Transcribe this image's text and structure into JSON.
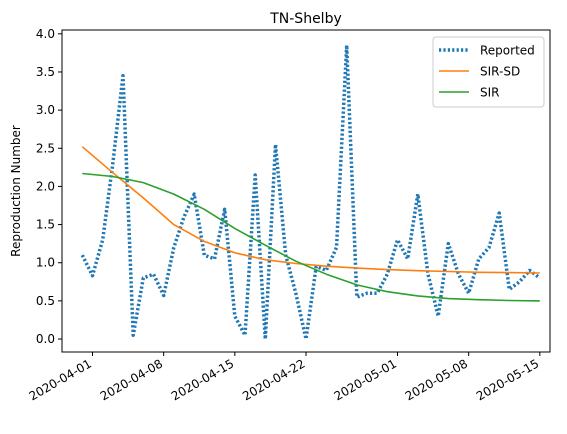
{
  "chart_data": {
    "type": "line",
    "title": "TN-Shelby",
    "xlabel": "",
    "ylabel": "Reproduction Number",
    "xlim": [
      "2020-03-29",
      "2020-05-16"
    ],
    "ylim": [
      -0.17,
      4.05
    ],
    "x_ticks": [
      "2020-04-01",
      "2020-04-08",
      "2020-04-15",
      "2020-04-22",
      "2020-05-01",
      "2020-05-08",
      "2020-05-15"
    ],
    "y_ticks": [
      "0.0",
      "0.5",
      "1.0",
      "1.5",
      "2.0",
      "2.5",
      "3.0",
      "3.5",
      "4.0"
    ],
    "grid": false,
    "legend_position": "upper right",
    "series": [
      {
        "name": "Reported",
        "style": "dotted",
        "color": "#1f77b4",
        "points": [
          [
            "2020-03-31",
            1.1
          ],
          [
            "2020-04-01",
            0.83
          ],
          [
            "2020-04-02",
            1.3
          ],
          [
            "2020-04-03",
            2.3
          ],
          [
            "2020-04-04",
            3.45
          ],
          [
            "2020-04-05",
            0.05
          ],
          [
            "2020-04-06",
            0.8
          ],
          [
            "2020-04-07",
            0.85
          ],
          [
            "2020-04-08",
            0.57
          ],
          [
            "2020-04-09",
            1.2
          ],
          [
            "2020-04-10",
            1.6
          ],
          [
            "2020-04-11",
            1.9
          ],
          [
            "2020-04-12",
            1.1
          ],
          [
            "2020-04-13",
            1.05
          ],
          [
            "2020-04-14",
            1.7
          ],
          [
            "2020-04-15",
            0.3
          ],
          [
            "2020-04-16",
            0.05
          ],
          [
            "2020-04-17",
            2.15
          ],
          [
            "2020-04-18",
            0.0
          ],
          [
            "2020-04-19",
            2.55
          ],
          [
            "2020-04-20",
            1.1
          ],
          [
            "2020-04-21",
            0.6
          ],
          [
            "2020-04-22",
            0.0
          ],
          [
            "2020-04-23",
            0.95
          ],
          [
            "2020-04-24",
            0.9
          ],
          [
            "2020-04-25",
            1.2
          ],
          [
            "2020-04-26",
            3.85
          ],
          [
            "2020-04-27",
            0.55
          ],
          [
            "2020-04-28",
            0.6
          ],
          [
            "2020-04-29",
            0.6
          ],
          [
            "2020-04-30",
            0.85
          ],
          [
            "2020-05-01",
            1.3
          ],
          [
            "2020-05-02",
            1.05
          ],
          [
            "2020-05-03",
            1.9
          ],
          [
            "2020-05-04",
            0.85
          ],
          [
            "2020-05-05",
            0.3
          ],
          [
            "2020-05-06",
            1.25
          ],
          [
            "2020-05-07",
            0.85
          ],
          [
            "2020-05-08",
            0.6
          ],
          [
            "2020-05-09",
            1.05
          ],
          [
            "2020-05-10",
            1.2
          ],
          [
            "2020-05-11",
            1.65
          ],
          [
            "2020-05-12",
            0.65
          ],
          [
            "2020-05-13",
            0.75
          ],
          [
            "2020-05-14",
            0.9
          ],
          [
            "2020-05-15",
            0.8
          ]
        ]
      },
      {
        "name": "SIR-SD",
        "style": "solid",
        "color": "#ff7f0e",
        "points": [
          [
            "2020-03-31",
            2.52
          ],
          [
            "2020-04-03",
            2.18
          ],
          [
            "2020-04-06",
            1.85
          ],
          [
            "2020-04-09",
            1.5
          ],
          [
            "2020-04-12",
            1.28
          ],
          [
            "2020-04-15",
            1.13
          ],
          [
            "2020-04-18",
            1.04
          ],
          [
            "2020-04-21",
            0.99
          ],
          [
            "2020-04-24",
            0.955
          ],
          [
            "2020-04-27",
            0.93
          ],
          [
            "2020-04-30",
            0.91
          ],
          [
            "2020-05-03",
            0.895
          ],
          [
            "2020-05-06",
            0.885
          ],
          [
            "2020-05-09",
            0.875
          ],
          [
            "2020-05-12",
            0.87
          ],
          [
            "2020-05-15",
            0.865
          ]
        ]
      },
      {
        "name": "SIR",
        "style": "solid",
        "color": "#2ca02c",
        "points": [
          [
            "2020-03-31",
            2.17
          ],
          [
            "2020-04-03",
            2.13
          ],
          [
            "2020-04-06",
            2.05
          ],
          [
            "2020-04-09",
            1.9
          ],
          [
            "2020-04-12",
            1.7
          ],
          [
            "2020-04-15",
            1.45
          ],
          [
            "2020-04-18",
            1.23
          ],
          [
            "2020-04-21",
            1.02
          ],
          [
            "2020-04-24",
            0.85
          ],
          [
            "2020-04-27",
            0.71
          ],
          [
            "2020-04-30",
            0.62
          ],
          [
            "2020-05-03",
            0.565
          ],
          [
            "2020-05-06",
            0.53
          ],
          [
            "2020-05-09",
            0.515
          ],
          [
            "2020-05-12",
            0.505
          ],
          [
            "2020-05-15",
            0.5
          ]
        ]
      }
    ]
  }
}
